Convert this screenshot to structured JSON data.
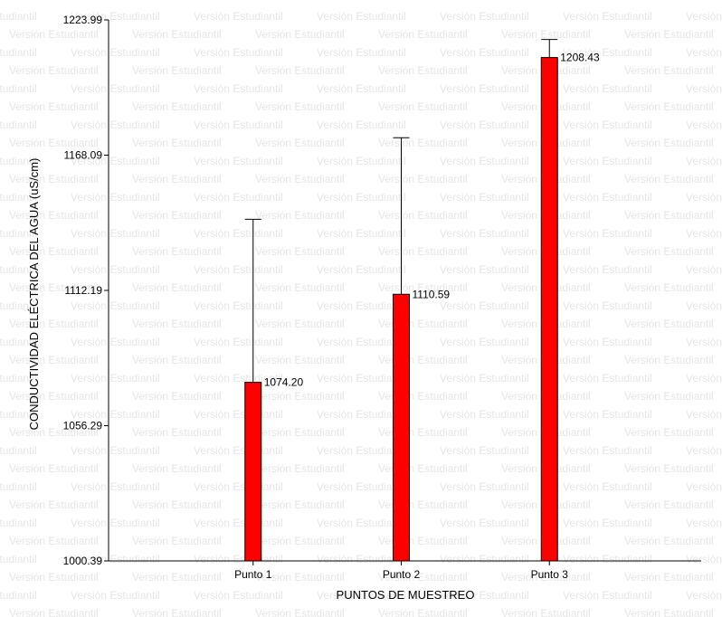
{
  "chart_data": {
    "type": "bar",
    "watermark": "Versión Estudiantil",
    "xlabel": "PUNTOS DE MUESTREO",
    "ylabel": "CONDUCTIVIDAD ELÉCTRICA DEL AGUA (uS/cm)",
    "ylim": [
      1000.39,
      1223.99
    ],
    "yticks": [
      "1000.39",
      "1056.29",
      "1112.19",
      "1168.09",
      "1223.99"
    ],
    "categories": [
      "Punto 1",
      "Punto 2",
      "Punto 3"
    ],
    "values": [
      1074.2,
      1110.59,
      1208.43
    ],
    "value_labels": [
      "1074.20",
      "1110.59",
      "1208.43"
    ],
    "error_upper": [
      1141.6,
      1175.3,
      1215.9
    ],
    "bar_color": "#ff0000",
    "grid": false,
    "legend": "none"
  }
}
